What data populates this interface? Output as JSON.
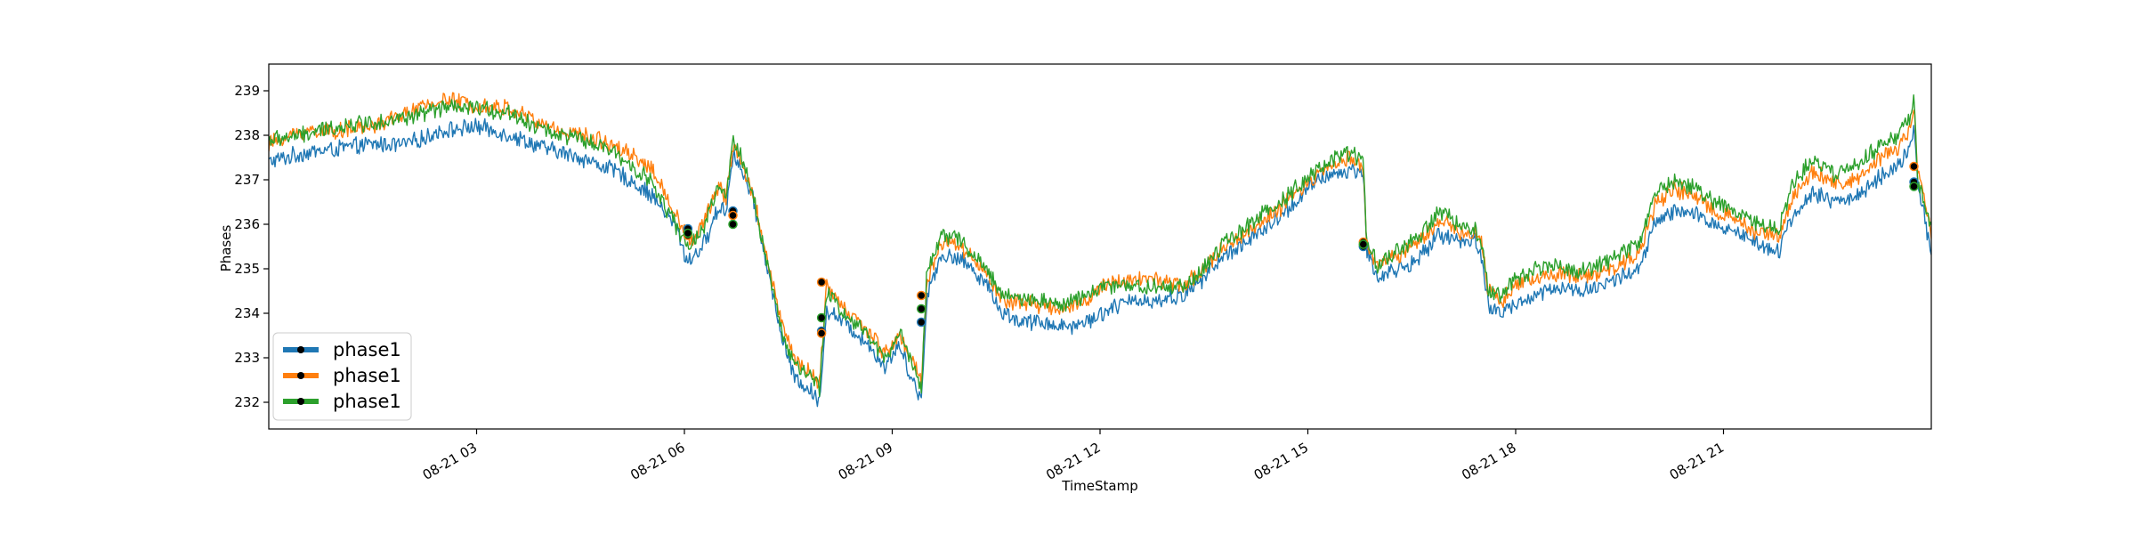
{
  "chart_data": {
    "type": "line",
    "title": "",
    "xlabel": "TimeStamp",
    "ylabel": "Phases",
    "x_unit": "hours since 08-21 00:00",
    "xlim": [
      0,
      24
    ],
    "ylim": [
      231.4,
      239.6
    ],
    "y_ticks": [
      232,
      233,
      234,
      235,
      236,
      237,
      238,
      239
    ],
    "x_ticks": [
      {
        "value": 3,
        "label": "08-21 03"
      },
      {
        "value": 6,
        "label": "08-21 06"
      },
      {
        "value": 9,
        "label": "08-21 09"
      },
      {
        "value": 12,
        "label": "08-21 12"
      },
      {
        "value": 15,
        "label": "08-21 15"
      },
      {
        "value": 18,
        "label": "08-21 18"
      },
      {
        "value": 21,
        "label": "08-21 21"
      }
    ],
    "grid": false,
    "legend": {
      "position": "lower-left",
      "entries": [
        "phase1",
        "phase1",
        "phase1"
      ]
    },
    "series": [
      {
        "name": "phase1",
        "color": "#1f77b4",
        "noise": 0.22,
        "x": [
          0,
          0.5,
          1,
          1.5,
          2,
          2.5,
          3,
          3.5,
          4,
          4.5,
          5,
          5.5,
          5.9,
          6.0,
          6.1,
          6.3,
          6.5,
          6.6,
          6.7,
          6.8,
          7.0,
          7.2,
          7.4,
          7.6,
          7.8,
          7.95,
          8.05,
          8.3,
          8.6,
          8.9,
          9.1,
          9.3,
          9.42,
          9.5,
          9.7,
          10.0,
          10.3,
          10.6,
          10.9,
          11.2,
          11.5,
          11.8,
          12.0,
          12.3,
          12.6,
          12.9,
          13.2,
          13.5,
          13.8,
          14.1,
          14.4,
          14.7,
          15.0,
          15.3,
          15.6,
          15.8,
          15.85,
          16.0,
          16.3,
          16.6,
          16.9,
          17.2,
          17.4,
          17.5,
          17.6,
          17.8,
          18.0,
          18.3,
          18.6,
          18.9,
          19.2,
          19.5,
          19.8,
          20.0,
          20.3,
          20.6,
          20.9,
          21.2,
          21.5,
          21.8,
          22.0,
          22.3,
          22.6,
          22.9,
          23.2,
          23.5,
          23.7,
          23.75,
          23.8,
          24.0
        ],
        "y": [
          237.4,
          237.6,
          237.7,
          237.8,
          237.8,
          238.1,
          238.2,
          238.0,
          237.7,
          237.5,
          237.2,
          236.7,
          235.9,
          235.3,
          235.2,
          235.6,
          236.4,
          236.3,
          237.6,
          237.3,
          236.5,
          235.0,
          233.5,
          232.5,
          232.3,
          232.0,
          234.1,
          233.8,
          233.4,
          232.8,
          233.3,
          232.5,
          232.0,
          234.4,
          235.3,
          235.2,
          234.8,
          234.0,
          233.8,
          233.8,
          233.7,
          233.8,
          234.0,
          234.2,
          234.3,
          234.3,
          234.4,
          234.8,
          235.3,
          235.6,
          235.9,
          236.3,
          236.8,
          237.1,
          237.2,
          237.2,
          235.4,
          234.8,
          235.0,
          235.2,
          235.8,
          235.6,
          235.7,
          235.3,
          234.2,
          234.0,
          234.2,
          234.4,
          234.6,
          234.5,
          234.6,
          234.8,
          235.0,
          236.0,
          236.3,
          236.2,
          236.0,
          235.8,
          235.6,
          235.4,
          236.2,
          236.7,
          236.5,
          236.6,
          237.0,
          237.3,
          237.7,
          238.2,
          236.9,
          235.4
        ]
      },
      {
        "name": "phase1",
        "color": "#ff7f0e",
        "noise": 0.22,
        "x": [
          0,
          0.5,
          1,
          1.5,
          2,
          2.5,
          3,
          3.5,
          4,
          4.5,
          5,
          5.5,
          5.9,
          6.0,
          6.1,
          6.3,
          6.5,
          6.6,
          6.7,
          6.8,
          7.0,
          7.2,
          7.4,
          7.6,
          7.8,
          7.95,
          8.05,
          8.3,
          8.6,
          8.9,
          9.1,
          9.3,
          9.42,
          9.5,
          9.7,
          10.0,
          10.3,
          10.6,
          10.9,
          11.2,
          11.5,
          11.8,
          12.0,
          12.3,
          12.6,
          12.9,
          13.2,
          13.5,
          13.8,
          14.1,
          14.4,
          14.7,
          15.0,
          15.3,
          15.6,
          15.8,
          15.85,
          16.0,
          16.3,
          16.6,
          16.9,
          17.2,
          17.4,
          17.5,
          17.6,
          17.8,
          18.0,
          18.3,
          18.6,
          18.9,
          19.2,
          19.5,
          19.8,
          20.0,
          20.3,
          20.6,
          20.9,
          21.2,
          21.5,
          21.8,
          22.0,
          22.3,
          22.6,
          22.9,
          23.2,
          23.5,
          23.7,
          23.75,
          23.8,
          24.0
        ],
        "y": [
          237.8,
          238.1,
          238.1,
          238.2,
          238.5,
          238.8,
          238.7,
          238.6,
          238.2,
          238.0,
          237.8,
          237.3,
          236.2,
          235.8,
          235.6,
          236.1,
          236.9,
          236.6,
          237.8,
          237.5,
          236.6,
          235.2,
          233.8,
          232.9,
          232.7,
          232.4,
          234.6,
          234.1,
          233.7,
          233.1,
          233.5,
          232.9,
          232.5,
          234.7,
          235.6,
          235.5,
          235.0,
          234.3,
          234.2,
          234.2,
          234.1,
          234.3,
          234.6,
          234.7,
          234.8,
          234.7,
          234.6,
          235.0,
          235.5,
          235.8,
          236.1,
          236.5,
          236.9,
          237.3,
          237.5,
          237.3,
          235.5,
          235.1,
          235.3,
          235.6,
          236.1,
          235.8,
          235.9,
          235.7,
          234.5,
          234.3,
          234.6,
          234.8,
          234.9,
          234.8,
          234.9,
          235.1,
          235.4,
          236.4,
          236.8,
          236.6,
          236.3,
          236.1,
          235.8,
          235.7,
          236.6,
          237.2,
          236.9,
          237.0,
          237.4,
          237.7,
          238.1,
          238.7,
          237.3,
          235.8
        ]
      },
      {
        "name": "phase1",
        "color": "#2ca02c",
        "noise": 0.22,
        "x": [
          0,
          0.5,
          1,
          1.5,
          2,
          2.5,
          3,
          3.5,
          4,
          4.5,
          5,
          5.5,
          5.9,
          6.0,
          6.1,
          6.3,
          6.5,
          6.6,
          6.7,
          6.8,
          7.0,
          7.2,
          7.4,
          7.6,
          7.8,
          7.95,
          8.05,
          8.3,
          8.6,
          8.9,
          9.1,
          9.3,
          9.42,
          9.5,
          9.7,
          10.0,
          10.3,
          10.6,
          10.9,
          11.2,
          11.5,
          11.8,
          12.0,
          12.3,
          12.6,
          12.9,
          13.2,
          13.5,
          13.8,
          14.1,
          14.4,
          14.7,
          15.0,
          15.3,
          15.6,
          15.8,
          15.85,
          16.0,
          16.3,
          16.6,
          16.9,
          17.2,
          17.4,
          17.5,
          17.6,
          17.8,
          18.0,
          18.3,
          18.6,
          18.9,
          19.2,
          19.5,
          19.8,
          20.0,
          20.3,
          20.6,
          20.9,
          21.2,
          21.5,
          21.8,
          22.0,
          22.3,
          22.6,
          22.9,
          23.2,
          23.5,
          23.7,
          23.75,
          23.8,
          24.0
        ],
        "y": [
          237.9,
          238.0,
          238.2,
          238.3,
          238.4,
          238.6,
          238.6,
          238.5,
          238.1,
          237.9,
          237.6,
          237.0,
          235.9,
          235.6,
          235.5,
          236.0,
          236.9,
          236.5,
          237.9,
          237.6,
          236.6,
          235.1,
          233.6,
          232.8,
          232.6,
          232.3,
          234.5,
          234.0,
          233.6,
          233.0,
          233.6,
          232.8,
          232.3,
          234.9,
          235.8,
          235.6,
          235.1,
          234.4,
          234.3,
          234.3,
          234.2,
          234.4,
          234.6,
          234.6,
          234.6,
          234.6,
          234.6,
          235.0,
          235.6,
          235.9,
          236.3,
          236.6,
          237.1,
          237.4,
          237.6,
          237.4,
          235.6,
          235.1,
          235.4,
          235.7,
          236.3,
          236.0,
          235.9,
          235.6,
          234.5,
          234.4,
          234.8,
          235.0,
          235.1,
          234.9,
          235.1,
          235.3,
          235.6,
          236.7,
          237.0,
          236.8,
          236.5,
          236.3,
          236.0,
          235.9,
          236.9,
          237.5,
          237.1,
          237.3,
          237.7,
          238.0,
          238.4,
          238.8,
          237.0,
          235.9
        ]
      }
    ],
    "markers": {
      "x": [
        6.05,
        6.05,
        6.05,
        6.7,
        6.7,
        6.7,
        7.98,
        7.98,
        7.98,
        7.98,
        9.42,
        9.42,
        9.42,
        15.8,
        15.8,
        15.8,
        23.75,
        23.75,
        23.75
      ],
      "y": [
        235.9,
        235.75,
        235.8,
        236.3,
        236.2,
        236.0,
        234.7,
        233.9,
        233.6,
        233.55,
        234.4,
        234.1,
        233.8,
        235.5,
        235.6,
        235.55,
        237.3,
        236.95,
        236.85
      ],
      "colors": [
        "#1f77b4",
        "#ff7f0e",
        "#2ca02c",
        "#1f77b4",
        "#ff7f0e",
        "#2ca02c",
        "#ff7f0e",
        "#2ca02c",
        "#1f77b4",
        "#ff7f0e",
        "#ff7f0e",
        "#2ca02c",
        "#1f77b4",
        "#1f77b4",
        "#ff7f0e",
        "#2ca02c",
        "#ff7f0e",
        "#1f77b4",
        "#2ca02c"
      ]
    }
  }
}
